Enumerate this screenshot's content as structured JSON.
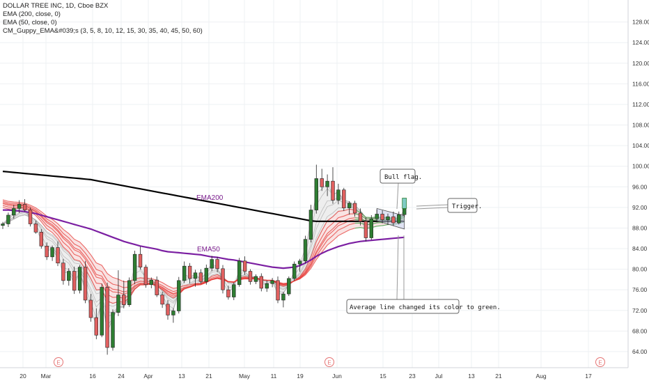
{
  "legend": {
    "title": "DOLLAR TREE INC, 1D, Cboe BZX",
    "ema200": "EMA (200, close, 0)",
    "ema50": "EMA (50, close, 0)",
    "guppy": "CM_Guppy_EMA&#039;s (3, 5, 8, 10, 12, 15, 30, 35, 40, 45, 50, 60)"
  },
  "colors": {
    "up": "#26a69a",
    "down": "#ef5350",
    "ema200": "#000000",
    "ema50": "#7b1fa2",
    "ribbon_bear": "#e53935",
    "ribbon_bull": "#43a047",
    "fast_ribbon": "#9e9e9e"
  },
  "annotations": {
    "ema200_label": "EMA200",
    "ema50_label": "EMA50",
    "bull_flag": "Bull flag.",
    "trigger": "Trigger.",
    "green_note": "Average line changed its color to green."
  },
  "earnings_marker": "E",
  "chart_data": {
    "type": "candlestick",
    "title": "DOLLAR TREE INC, 1D, Cboe BZX",
    "ylim": [
      60,
      130
    ],
    "y_ticks": [
      "64.00",
      "68.00",
      "72.00",
      "76.00",
      "80.00",
      "84.00",
      "88.00",
      "92.00",
      "96.00",
      "100.00",
      "104.00",
      "108.00",
      "112.00",
      "116.00",
      "120.00",
      "124.00",
      "128.00"
    ],
    "x_ticks": [
      "20",
      "Mar",
      "16",
      "24",
      "Apr",
      "13",
      "21",
      "May",
      "11",
      "19",
      "Jun",
      "15",
      "23",
      "Jul",
      "13",
      "21",
      "Aug",
      "17"
    ],
    "candles": [
      [
        88.5,
        89.2,
        87.8,
        88.8
      ],
      [
        88.8,
        91.0,
        88.2,
        90.5
      ],
      [
        90.5,
        92.5,
        89.8,
        91.8
      ],
      [
        91.8,
        93.4,
        90.9,
        92.6
      ],
      [
        92.6,
        93.6,
        91.2,
        91.5
      ],
      [
        91.5,
        92.0,
        88.3,
        88.8
      ],
      [
        88.8,
        89.4,
        86.9,
        87.2
      ],
      [
        87.2,
        87.8,
        84.0,
        84.5
      ],
      [
        84.5,
        85.2,
        81.8,
        82.4
      ],
      [
        82.4,
        84.6,
        81.6,
        84.2
      ],
      [
        84.2,
        85.4,
        80.6,
        81.2
      ],
      [
        81.2,
        82.0,
        77.0,
        77.8
      ],
      [
        77.8,
        80.2,
        76.8,
        79.6
      ],
      [
        79.6,
        80.5,
        75.2,
        75.9
      ],
      [
        75.9,
        80.8,
        75.3,
        80.4
      ],
      [
        80.4,
        81.6,
        73.4,
        74.0
      ],
      [
        74.0,
        75.2,
        69.8,
        70.6
      ],
      [
        70.6,
        72.4,
        66.4,
        67.2
      ],
      [
        67.2,
        77.2,
        66.8,
        76.5
      ],
      [
        76.5,
        77.4,
        63.4,
        64.8
      ],
      [
        64.8,
        72.2,
        64.2,
        71.6
      ],
      [
        71.6,
        79.8,
        70.9,
        75.0
      ],
      [
        75.0,
        77.8,
        72.4,
        73.1
      ],
      [
        73.1,
        78.4,
        72.7,
        77.8
      ],
      [
        77.8,
        83.6,
        77.1,
        82.9
      ],
      [
        82.9,
        84.4,
        79.9,
        80.4
      ],
      [
        80.4,
        80.9,
        76.4,
        77.0
      ],
      [
        77.0,
        78.4,
        76.3,
        77.9
      ],
      [
        77.9,
        78.6,
        74.6,
        75.0
      ],
      [
        75.0,
        75.6,
        72.5,
        73.2
      ],
      [
        73.2,
        74.0,
        70.2,
        71.1
      ],
      [
        71.1,
        72.4,
        69.6,
        71.9
      ],
      [
        71.9,
        78.5,
        71.4,
        77.8
      ],
      [
        77.8,
        81.5,
        77.3,
        80.6
      ],
      [
        80.6,
        81.2,
        77.2,
        78.2
      ],
      [
        78.2,
        79.9,
        76.6,
        79.3
      ],
      [
        79.3,
        80.0,
        77.2,
        77.6
      ],
      [
        77.6,
        80.9,
        77.0,
        80.2
      ],
      [
        80.2,
        82.6,
        79.6,
        81.9
      ],
      [
        81.9,
        82.4,
        79.4,
        80.1
      ],
      [
        80.1,
        80.8,
        75.3,
        76.0
      ],
      [
        76.0,
        76.8,
        74.1,
        74.6
      ],
      [
        74.6,
        77.4,
        74.0,
        77.0
      ],
      [
        77.0,
        82.2,
        76.6,
        81.6
      ],
      [
        81.6,
        82.5,
        78.9,
        79.6
      ],
      [
        79.6,
        80.0,
        77.0,
        77.6
      ],
      [
        77.6,
        79.0,
        77.1,
        78.6
      ],
      [
        78.6,
        79.2,
        75.7,
        76.3
      ],
      [
        76.3,
        77.8,
        75.6,
        77.2
      ],
      [
        77.2,
        78.3,
        76.5,
        77.8
      ],
      [
        77.8,
        78.6,
        73.4,
        74.0
      ],
      [
        74.0,
        75.6,
        72.6,
        75.2
      ],
      [
        75.2,
        78.6,
        74.8,
        78.2
      ],
      [
        78.2,
        81.5,
        77.8,
        81.0
      ],
      [
        81.0,
        82.0,
        79.5,
        81.6
      ],
      [
        81.6,
        86.5,
        81.1,
        85.8
      ],
      [
        85.8,
        92.5,
        85.2,
        91.5
      ],
      [
        91.5,
        100.3,
        90.8,
        97.6
      ],
      [
        97.6,
        99.5,
        95.2,
        96.0
      ],
      [
        96.0,
        98.4,
        94.2,
        97.1
      ],
      [
        97.1,
        99.8,
        92.7,
        93.4
      ],
      [
        93.4,
        96.6,
        92.6,
        95.4
      ],
      [
        95.4,
        95.8,
        91.3,
        91.9
      ],
      [
        91.9,
        93.2,
        90.6,
        92.8
      ],
      [
        92.8,
        93.3,
        90.2,
        90.9
      ],
      [
        90.9,
        91.8,
        88.5,
        89.3
      ],
      [
        89.3,
        90.1,
        85.4,
        86.1
      ],
      [
        86.1,
        90.5,
        85.7,
        89.8
      ],
      [
        89.8,
        91.6,
        89.1,
        90.7
      ],
      [
        90.7,
        91.4,
        88.9,
        89.6
      ],
      [
        89.6,
        90.8,
        88.6,
        90.2
      ],
      [
        90.2,
        91.2,
        88.4,
        89.0
      ],
      [
        89.0,
        91.2,
        88.7,
        90.6
      ],
      [
        90.6,
        92.6,
        90.1,
        92.1
      ]
    ],
    "ema200": [
      99.0,
      98.9,
      98.8,
      98.7,
      98.6,
      98.5,
      98.4,
      98.3,
      98.2,
      98.1,
      98.0,
      97.9,
      97.8,
      97.7,
      97.6,
      97.5,
      97.4,
      97.2,
      97.0,
      96.8,
      96.6,
      96.4,
      96.2,
      96.0,
      95.8,
      95.6,
      95.4,
      95.2,
      95.0,
      94.8,
      94.6,
      94.4,
      94.2,
      94.0,
      93.8,
      93.6,
      93.4,
      93.2,
      93.0,
      92.8,
      92.6,
      92.4,
      92.2,
      92.0,
      91.8,
      91.6,
      91.4,
      91.2,
      91.0,
      90.8,
      90.6,
      90.4,
      90.2,
      90.0,
      89.8,
      89.6,
      89.4,
      89.3,
      89.3,
      89.3,
      89.3,
      89.3,
      89.3,
      89.3,
      89.3,
      89.3,
      89.3,
      89.3,
      89.3,
      89.3,
      89.3,
      89.3,
      89.3,
      89.3
    ],
    "ema50": [
      91.5,
      91.5,
      91.4,
      91.3,
      91.2,
      91.0,
      90.8,
      90.5,
      90.2,
      89.9,
      89.6,
      89.3,
      89.0,
      88.7,
      88.4,
      88.1,
      87.8,
      87.4,
      87.0,
      86.6,
      86.2,
      85.8,
      85.4,
      85.1,
      84.8,
      84.5,
      84.3,
      84.1,
      83.9,
      83.6,
      83.4,
      83.3,
      83.2,
      83.1,
      83.0,
      82.9,
      82.8,
      82.6,
      82.4,
      82.3,
      82.1,
      81.9,
      81.8,
      81.6,
      81.4,
      81.2,
      81.0,
      80.8,
      80.6,
      80.4,
      80.3,
      80.2,
      80.3,
      80.4,
      80.7,
      81.2,
      81.8,
      82.5,
      83.1,
      83.6,
      84.0,
      84.4,
      84.7,
      85.0,
      85.2,
      85.4,
      85.5,
      85.6,
      85.7,
      85.8,
      85.9,
      86.0,
      86.1,
      86.2
    ]
  }
}
